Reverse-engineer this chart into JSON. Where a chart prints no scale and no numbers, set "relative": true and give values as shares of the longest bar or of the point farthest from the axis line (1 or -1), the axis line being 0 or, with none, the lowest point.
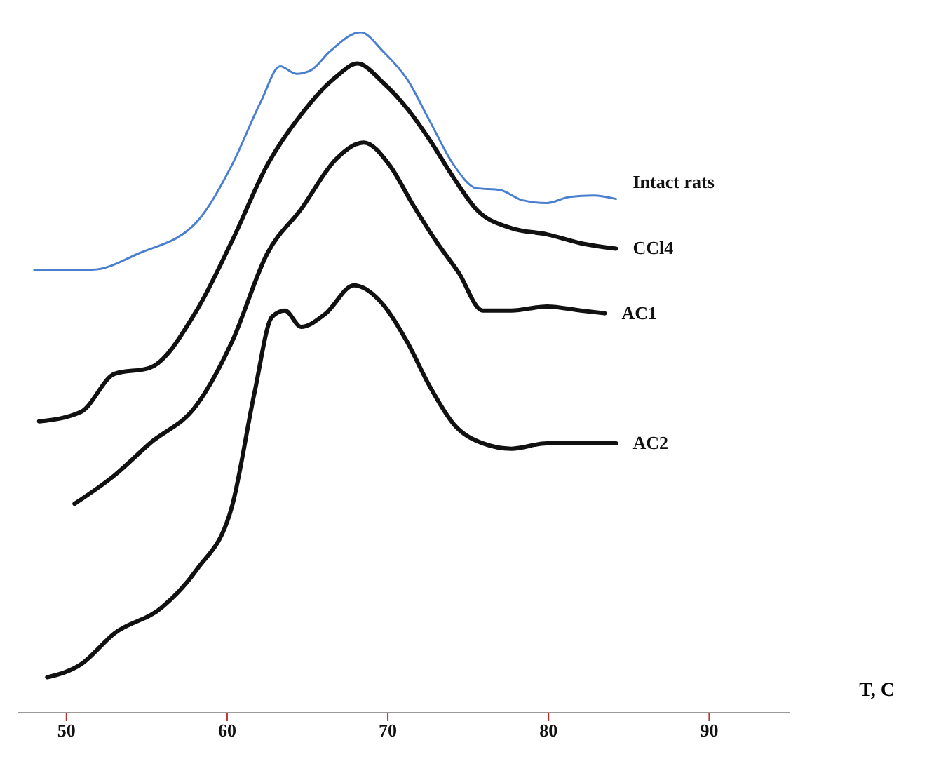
{
  "chart_data": {
    "type": "line",
    "relative": true,
    "xlabel": "T, C",
    "xlim": [
      47,
      95
    ],
    "xticks": [
      50,
      60,
      70,
      80,
      90
    ],
    "tick_labels": "x",
    "marker": "none",
    "line_style": "solid",
    "legend": false,
    "series": [
      {
        "name": "Intact rats",
        "color": "#4a7fd0",
        "x": [
          48.0,
          51.6,
          54.5,
          58.1,
          60.3,
          62.1,
          63.3,
          64.3,
          65.2,
          66.4,
          68.3,
          69.7,
          71.2,
          72.6,
          74.1,
          75.5,
          77.0,
          78.4,
          79.9,
          81.3,
          82.8,
          84.2
        ],
        "values": [
          0.651,
          0.651,
          0.675,
          0.721,
          0.805,
          0.898,
          0.95,
          0.939,
          0.944,
          0.972,
          1.0,
          0.972,
          0.931,
          0.87,
          0.805,
          0.771,
          0.768,
          0.753,
          0.749,
          0.758,
          0.76,
          0.755
        ]
      },
      {
        "name": "CCl4",
        "color": "#111111",
        "x": [
          48.3,
          50.9,
          53.0,
          55.2,
          58.1,
          60.3,
          62.5,
          64.6,
          66.8,
          68.1,
          69.7,
          71.2,
          72.6,
          74.1,
          75.5,
          77.7,
          79.9,
          82.0,
          84.2
        ],
        "values": [
          0.428,
          0.442,
          0.498,
          0.507,
          0.591,
          0.693,
          0.805,
          0.879,
          0.935,
          0.954,
          0.926,
          0.888,
          0.842,
          0.786,
          0.74,
          0.712,
          0.703,
          0.69,
          0.682
        ]
      },
      {
        "name": "AC1",
        "color": "#111111",
        "x": [
          50.5,
          53.0,
          55.2,
          58.1,
          60.3,
          62.5,
          64.6,
          66.8,
          68.5,
          70.1,
          71.5,
          73.0,
          74.4,
          75.9,
          77.7,
          79.9,
          82.0,
          83.5
        ],
        "values": [
          0.307,
          0.349,
          0.396,
          0.452,
          0.545,
          0.675,
          0.74,
          0.814,
          0.838,
          0.805,
          0.749,
          0.693,
          0.647,
          0.591,
          0.591,
          0.597,
          0.591,
          0.587
        ]
      },
      {
        "name": "AC2",
        "color": "#111111",
        "x": [
          48.8,
          50.9,
          53.0,
          55.9,
          58.1,
          60.3,
          61.7,
          62.8,
          63.6,
          64.6,
          66.1,
          67.9,
          69.7,
          71.2,
          72.6,
          74.1,
          75.9,
          77.7,
          79.9,
          82.0,
          84.2
        ],
        "values": [
          0.052,
          0.071,
          0.117,
          0.154,
          0.21,
          0.303,
          0.47,
          0.582,
          0.591,
          0.567,
          0.586,
          0.628,
          0.6,
          0.545,
          0.48,
          0.424,
          0.396,
          0.388,
          0.396,
          0.396,
          0.396
        ]
      }
    ]
  }
}
